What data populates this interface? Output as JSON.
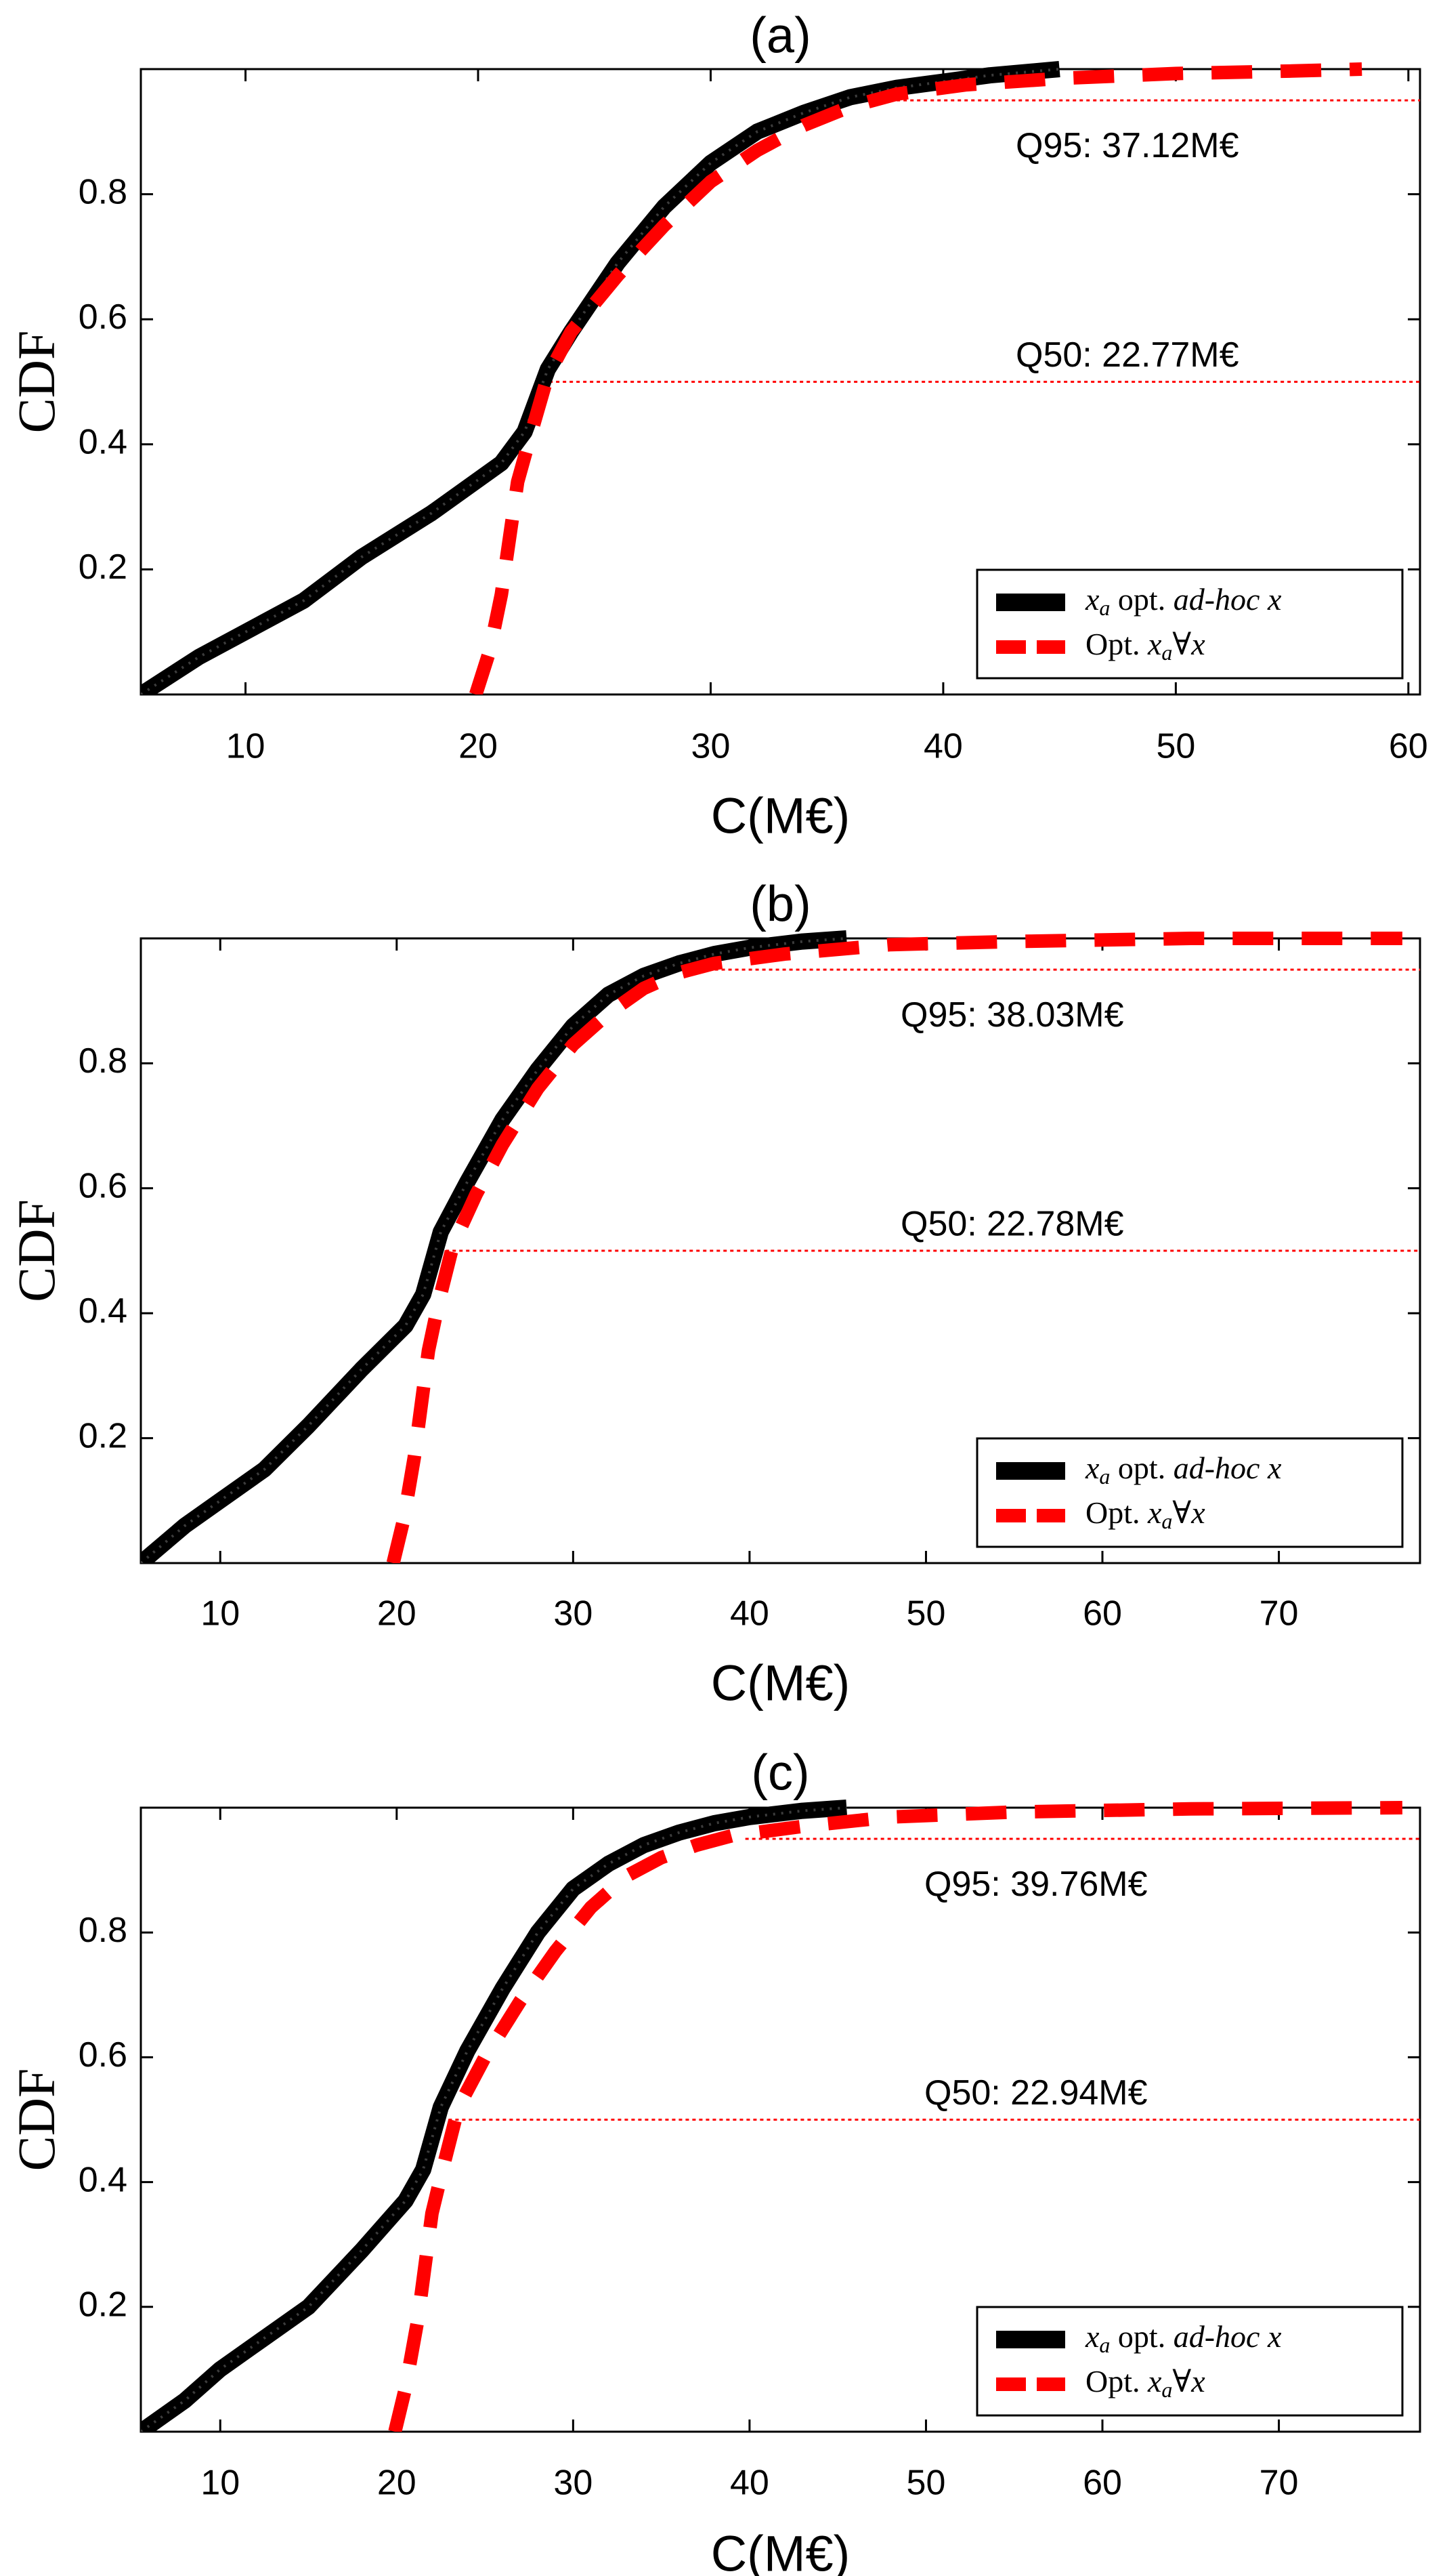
{
  "chart_data": [
    {
      "type": "line",
      "title": "(a)",
      "xlabel": "C(M€)",
      "ylabel": "CDF",
      "xlim": [
        5.5,
        60.5
      ],
      "ylim": [
        0,
        1
      ],
      "xticks": [
        "10",
        "20",
        "30",
        "40",
        "50",
        "60"
      ],
      "xtick_values": [
        10,
        20,
        30,
        40,
        50,
        60
      ],
      "yticks": [
        "0.2",
        "0.4",
        "0.6",
        "0.8"
      ],
      "ytick_values": [
        0.2,
        0.4,
        0.6,
        0.8
      ],
      "grid": false,
      "legend_position": "bottom-right",
      "series": [
        {
          "name_parts": [
            "x",
            "a",
            " opt. ",
            "ad-hoc",
            " ",
            "x"
          ],
          "color": "#000000",
          "style": "solid-thick",
          "points": [
            [
              5.5,
              0.0
            ],
            [
              8,
              0.06
            ],
            [
              10,
              0.1
            ],
            [
              12.5,
              0.15
            ],
            [
              15,
              0.22
            ],
            [
              18,
              0.29
            ],
            [
              21,
              0.37
            ],
            [
              22,
              0.42
            ],
            [
              23,
              0.52
            ],
            [
              24,
              0.58
            ],
            [
              26,
              0.69
            ],
            [
              28,
              0.78
            ],
            [
              30,
              0.85
            ],
            [
              32,
              0.9
            ],
            [
              34,
              0.93
            ],
            [
              36,
              0.955
            ],
            [
              38,
              0.97
            ],
            [
              40,
              0.98
            ],
            [
              42,
              0.99
            ],
            [
              45,
              1.0
            ]
          ]
        },
        {
          "name_parts": [
            "Opt. ",
            "x",
            "a",
            "∀",
            "x"
          ],
          "color": "#ff0000",
          "style": "dashed-thick",
          "points": [
            [
              19.9,
              0.0
            ],
            [
              20.5,
              0.07
            ],
            [
              21,
              0.16
            ],
            [
              21.7,
              0.34
            ],
            [
              22.3,
              0.42
            ],
            [
              23,
              0.51
            ],
            [
              24,
              0.58
            ],
            [
              26,
              0.67
            ],
            [
              28,
              0.75
            ],
            [
              30,
              0.82
            ],
            [
              32,
              0.87
            ],
            [
              34,
              0.91
            ],
            [
              36,
              0.94
            ],
            [
              38,
              0.96
            ],
            [
              41,
              0.975
            ],
            [
              45,
              0.985
            ],
            [
              50,
              0.993
            ],
            [
              55,
              0.997
            ],
            [
              58,
              1.0
            ]
          ]
        }
      ],
      "reference_lines": [
        {
          "label": "Q95: 37.12M€",
          "y": 0.95,
          "x_start": 38,
          "x_end": 60.5
        },
        {
          "label": "Q50: 22.77M€",
          "y": 0.5,
          "x_start": 22.77,
          "x_end": 60.5
        }
      ]
    },
    {
      "type": "line",
      "title": "(b)",
      "xlabel": "C(M€)",
      "ylabel": "CDF",
      "xlim": [
        5.5,
        78
      ],
      "ylim": [
        0,
        1
      ],
      "xticks": [
        "10",
        "20",
        "30",
        "40",
        "50",
        "60",
        "70"
      ],
      "xtick_values": [
        10,
        20,
        30,
        40,
        50,
        60,
        70
      ],
      "yticks": [
        "0.2",
        "0.4",
        "0.6",
        "0.8"
      ],
      "ytick_values": [
        0.2,
        0.4,
        0.6,
        0.8
      ],
      "grid": false,
      "legend_position": "bottom-right",
      "series": [
        {
          "name_parts": [
            "x",
            "a",
            " opt. ",
            "ad-hoc",
            " ",
            "x"
          ],
          "color": "#000000",
          "style": "solid-thick",
          "points": [
            [
              5.5,
              0.0
            ],
            [
              8,
              0.06
            ],
            [
              10,
              0.1
            ],
            [
              12.5,
              0.15
            ],
            [
              15,
              0.22
            ],
            [
              18,
              0.31
            ],
            [
              20.5,
              0.38
            ],
            [
              21.5,
              0.43
            ],
            [
              22.5,
              0.53
            ],
            [
              24,
              0.61
            ],
            [
              26,
              0.71
            ],
            [
              28,
              0.79
            ],
            [
              30,
              0.86
            ],
            [
              32,
              0.91
            ],
            [
              34,
              0.94
            ],
            [
              36,
              0.96
            ],
            [
              38,
              0.975
            ],
            [
              40,
              0.985
            ],
            [
              43,
              0.995
            ],
            [
              45.5,
              1.0
            ]
          ]
        },
        {
          "name_parts": [
            "Opt. ",
            "x",
            "a",
            "∀",
            "x"
          ],
          "color": "#ff0000",
          "style": "dashed-thick",
          "points": [
            [
              19.8,
              0.0
            ],
            [
              20.4,
              0.07
            ],
            [
              21,
              0.17
            ],
            [
              21.8,
              0.34
            ],
            [
              22.4,
              0.42
            ],
            [
              23.2,
              0.51
            ],
            [
              24.5,
              0.59
            ],
            [
              26,
              0.67
            ],
            [
              28,
              0.76
            ],
            [
              30,
              0.83
            ],
            [
              32,
              0.88
            ],
            [
              34,
              0.92
            ],
            [
              36,
              0.945
            ],
            [
              38,
              0.96
            ],
            [
              42,
              0.975
            ],
            [
              48,
              0.99
            ],
            [
              55,
              0.995
            ],
            [
              65,
              1.0
            ],
            [
              77,
              1.0
            ]
          ]
        }
      ],
      "reference_lines": [
        {
          "label": "Q95: 38.03M€",
          "y": 0.95,
          "x_start": 38.03,
          "x_end": 78
        },
        {
          "label": "Q50: 22.78M€",
          "y": 0.5,
          "x_start": 22.78,
          "x_end": 78
        }
      ]
    },
    {
      "type": "line",
      "title": "(c)",
      "xlabel": "C(M€)",
      "ylabel": "CDF",
      "xlim": [
        5.5,
        78
      ],
      "ylim": [
        0,
        1
      ],
      "xticks": [
        "10",
        "20",
        "30",
        "40",
        "50",
        "60",
        "70"
      ],
      "xtick_values": [
        10,
        20,
        30,
        40,
        50,
        60,
        70
      ],
      "yticks": [
        "0.2",
        "0.4",
        "0.6",
        "0.8"
      ],
      "ytick_values": [
        0.2,
        0.4,
        0.6,
        0.8
      ],
      "grid": false,
      "legend_position": "bottom-right",
      "series": [
        {
          "name_parts": [
            "x",
            "a",
            " opt. ",
            "ad-hoc",
            " ",
            "x"
          ],
          "color": "#000000",
          "style": "solid-thick",
          "points": [
            [
              5.5,
              0.0
            ],
            [
              8,
              0.05
            ],
            [
              10,
              0.1
            ],
            [
              12.5,
              0.15
            ],
            [
              15,
              0.2
            ],
            [
              18,
              0.29
            ],
            [
              20.5,
              0.37
            ],
            [
              21.5,
              0.42
            ],
            [
              22.5,
              0.52
            ],
            [
              24,
              0.61
            ],
            [
              26,
              0.71
            ],
            [
              28,
              0.8
            ],
            [
              30,
              0.87
            ],
            [
              32,
              0.91
            ],
            [
              34,
              0.94
            ],
            [
              36,
              0.96
            ],
            [
              38,
              0.975
            ],
            [
              40,
              0.985
            ],
            [
              43,
              0.995
            ],
            [
              45.5,
              1.0
            ]
          ]
        },
        {
          "name_parts": [
            "Opt. ",
            "x",
            "a",
            "∀",
            "x"
          ],
          "color": "#ff0000",
          "style": "dashed-thick",
          "points": [
            [
              19.9,
              0.0
            ],
            [
              20.5,
              0.07
            ],
            [
              21.2,
              0.18
            ],
            [
              22,
              0.35
            ],
            [
              22.6,
              0.42
            ],
            [
              23.5,
              0.52
            ],
            [
              25,
              0.6
            ],
            [
              27,
              0.69
            ],
            [
              29,
              0.77
            ],
            [
              31,
              0.84
            ],
            [
              33,
              0.89
            ],
            [
              35,
              0.92
            ],
            [
              37,
              0.94
            ],
            [
              39,
              0.955
            ],
            [
              43,
              0.97
            ],
            [
              48,
              0.985
            ],
            [
              55,
              0.993
            ],
            [
              65,
              0.998
            ],
            [
              77,
              1.0
            ]
          ]
        }
      ],
      "reference_lines": [
        {
          "label": "Q95: 39.76M€",
          "y": 0.95,
          "x_start": 39.76,
          "x_end": 78
        },
        {
          "label": "Q50: 22.94M€",
          "y": 0.5,
          "x_start": 22.94,
          "x_end": 78
        }
      ]
    }
  ]
}
